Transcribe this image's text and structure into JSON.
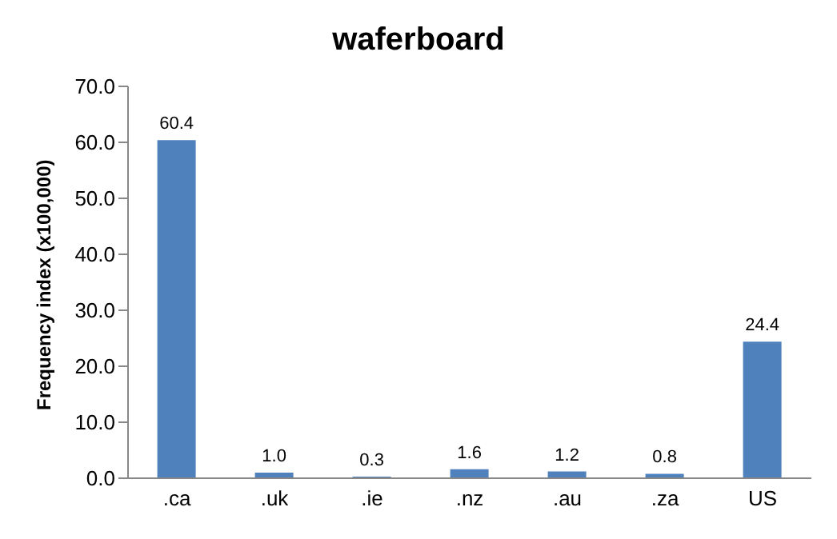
{
  "chart_data": {
    "type": "bar",
    "title": "waferboard",
    "ylabel": "Frequency index (x100,000)",
    "categories": [
      ".ca",
      ".uk",
      ".ie",
      ".nz",
      ".au",
      ".za",
      "US"
    ],
    "values": [
      60.4,
      1.0,
      0.3,
      1.6,
      1.2,
      0.8,
      24.4
    ],
    "value_labels": [
      "60.4",
      "1.0",
      "0.3",
      "1.6",
      "1.2",
      "0.8",
      "24.4"
    ],
    "color": "#4f81bd",
    "ylim": [
      0,
      70
    ],
    "yticks": [
      {
        "value": 0,
        "label": "0.0"
      },
      {
        "value": 10,
        "label": "10.0"
      },
      {
        "value": 20,
        "label": "20.0"
      },
      {
        "value": 30,
        "label": "30.0"
      },
      {
        "value": 40,
        "label": "40.0"
      },
      {
        "value": 50,
        "label": "50.0"
      },
      {
        "value": 60,
        "label": "60.0"
      },
      {
        "value": 70,
        "label": "70.0"
      }
    ],
    "grid": false
  }
}
